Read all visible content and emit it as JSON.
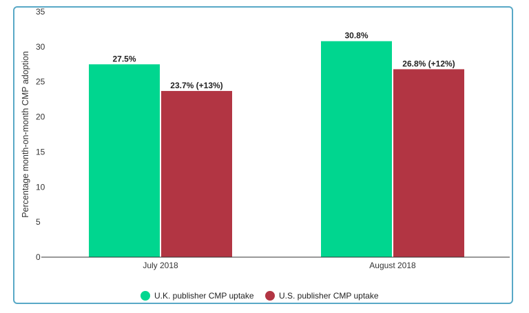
{
  "chart_data": {
    "type": "bar",
    "categories": [
      "July 2018",
      "August 2018"
    ],
    "series": [
      {
        "name": "U.K. publisher CMP uptake",
        "values": [
          27.5,
          30.8
        ],
        "labels": [
          "27.5%",
          "30.8%"
        ],
        "color": "#00d68f"
      },
      {
        "name": "U.S. publisher CMP uptake",
        "values": [
          23.7,
          26.8
        ],
        "labels": [
          "23.7% (+13%)",
          "26.8% (+12%)"
        ],
        "color": "#b23543"
      }
    ],
    "ylabel": "Percentage month-on-month CMP adoption",
    "ylim": [
      0,
      35
    ],
    "yticks": [
      0,
      5,
      10,
      15,
      20,
      25,
      30,
      35
    ],
    "grid": false,
    "legend": "bottom-center"
  }
}
